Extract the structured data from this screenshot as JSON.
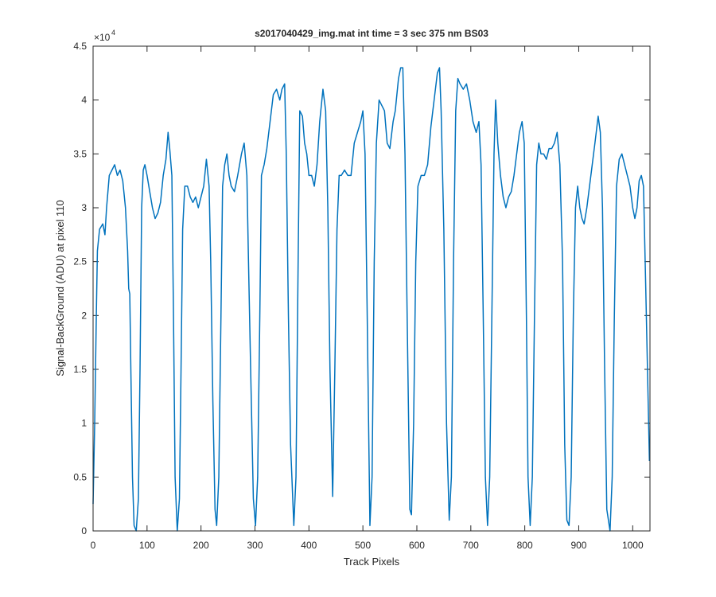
{
  "chart_data": {
    "type": "line",
    "title": "s2017040429_img.mat int time = 3 sec  375 nm BS03",
    "x_label": "Track Pixels",
    "y_label": "Signal-BackGround (ADU) at pixel 110",
    "y_multiplier": "×10",
    "y_multiplier_exponent": "4",
    "color": "#0072bd",
    "xlim": [
      0,
      1032
    ],
    "ylim": [
      0,
      4.5
    ],
    "xticks": [
      0,
      100,
      200,
      300,
      400,
      500,
      600,
      700,
      800,
      900,
      1000
    ],
    "yticks": [
      0,
      0.5,
      1,
      1.5,
      2,
      2.5,
      3,
      3.5,
      4,
      4.5
    ],
    "x": [
      0,
      3,
      6,
      8,
      12,
      18,
      22,
      25,
      30,
      35,
      40,
      45,
      50,
      55,
      60,
      64,
      66,
      68,
      70,
      73,
      76,
      80,
      84,
      87,
      90,
      93,
      96,
      100,
      105,
      110,
      115,
      120,
      125,
      130,
      135,
      139,
      142,
      146,
      149,
      152,
      156,
      160,
      163,
      166,
      170,
      175,
      180,
      185,
      190,
      195,
      200,
      205,
      210,
      215,
      218,
      222,
      226,
      229,
      233,
      237,
      240,
      244,
      248,
      252,
      256,
      262,
      268,
      275,
      280,
      285,
      288,
      292,
      297,
      301,
      305,
      309,
      312,
      317,
      322,
      328,
      334,
      340,
      346,
      350,
      355,
      358,
      362,
      366,
      372,
      376,
      380,
      383,
      388,
      392,
      396,
      400,
      405,
      410,
      415,
      420,
      426,
      431,
      435,
      439,
      444,
      448,
      452,
      456,
      460,
      466,
      472,
      478,
      484,
      490,
      496,
      500,
      504,
      508,
      513,
      517,
      521,
      525,
      530,
      535,
      540,
      545,
      550,
      556,
      560,
      566,
      570,
      574,
      578,
      582,
      587,
      590,
      594,
      598,
      602,
      608,
      614,
      620,
      626,
      632,
      638,
      642,
      645,
      650,
      655,
      660,
      664,
      668,
      672,
      676,
      680,
      686,
      692,
      698,
      704,
      710,
      715,
      719,
      723,
      727,
      731,
      735,
      739,
      743,
      746,
      750,
      755,
      760,
      765,
      770,
      775,
      780,
      785,
      790,
      795,
      799,
      803,
      806,
      810,
      814,
      818,
      822,
      826,
      830,
      835,
      840,
      845,
      850,
      855,
      860,
      865,
      870,
      874,
      878,
      882,
      886,
      890,
      894,
      898,
      902,
      906,
      910,
      915,
      920,
      925,
      930,
      936,
      940,
      944,
      948,
      952,
      958,
      962,
      966,
      970,
      975,
      980,
      985,
      990,
      995,
      1000,
      1004,
      1008,
      1012,
      1016,
      1020,
      1024,
      1031
    ],
    "values": [
      0.25,
      1.0,
      2.0,
      2.6,
      2.8,
      2.85,
      2.75,
      3.0,
      3.3,
      3.35,
      3.4,
      3.3,
      3.35,
      3.25,
      3.0,
      2.6,
      2.25,
      2.2,
      1.5,
      0.5,
      0.05,
      0.0,
      0.3,
      1.5,
      3.0,
      3.35,
      3.4,
      3.3,
      3.15,
      3.0,
      2.9,
      2.95,
      3.05,
      3.3,
      3.45,
      3.7,
      3.55,
      3.3,
      2.0,
      0.5,
      0.0,
      0.3,
      1.5,
      2.8,
      3.2,
      3.2,
      3.1,
      3.05,
      3.1,
      3.0,
      3.1,
      3.2,
      3.45,
      3.2,
      2.5,
      1.2,
      0.2,
      0.05,
      0.5,
      2.0,
      3.2,
      3.4,
      3.5,
      3.3,
      3.2,
      3.15,
      3.3,
      3.5,
      3.6,
      3.3,
      2.5,
      1.5,
      0.3,
      0.05,
      0.5,
      2.0,
      3.3,
      3.4,
      3.55,
      3.8,
      4.05,
      4.1,
      4.0,
      4.1,
      4.15,
      3.5,
      2.0,
      0.8,
      0.05,
      0.5,
      2.5,
      3.9,
      3.85,
      3.6,
      3.5,
      3.3,
      3.3,
      3.2,
      3.4,
      3.8,
      4.1,
      3.9,
      3.0,
      1.5,
      0.32,
      1.5,
      2.8,
      3.3,
      3.3,
      3.35,
      3.3,
      3.3,
      3.6,
      3.7,
      3.8,
      3.9,
      3.5,
      2.0,
      0.05,
      0.5,
      2.5,
      3.6,
      4.0,
      3.95,
      3.9,
      3.6,
      3.55,
      3.8,
      3.9,
      4.2,
      4.3,
      4.3,
      3.5,
      2.0,
      0.2,
      0.15,
      1.0,
      2.5,
      3.2,
      3.3,
      3.3,
      3.4,
      3.75,
      4.0,
      4.25,
      4.3,
      3.9,
      2.8,
      1.0,
      0.1,
      0.5,
      2.5,
      3.9,
      4.2,
      4.15,
      4.1,
      4.15,
      4.0,
      3.8,
      3.7,
      3.8,
      3.4,
      2.0,
      0.5,
      0.05,
      0.5,
      2.0,
      3.5,
      4.0,
      3.6,
      3.3,
      3.1,
      3.0,
      3.1,
      3.15,
      3.3,
      3.5,
      3.7,
      3.8,
      3.6,
      2.0,
      0.5,
      0.05,
      0.5,
      2.0,
      3.4,
      3.6,
      3.5,
      3.5,
      3.45,
      3.55,
      3.55,
      3.6,
      3.7,
      3.4,
      2.5,
      0.8,
      0.1,
      0.05,
      0.5,
      2.0,
      3.0,
      3.2,
      3.0,
      2.9,
      2.85,
      3.0,
      3.2,
      3.4,
      3.6,
      3.85,
      3.7,
      3.0,
      1.5,
      0.2,
      0.0,
      0.5,
      2.0,
      3.2,
      3.45,
      3.5,
      3.4,
      3.3,
      3.2,
      3.0,
      2.9,
      3.0,
      3.25,
      3.3,
      3.2,
      2.3,
      0.65
    ]
  }
}
